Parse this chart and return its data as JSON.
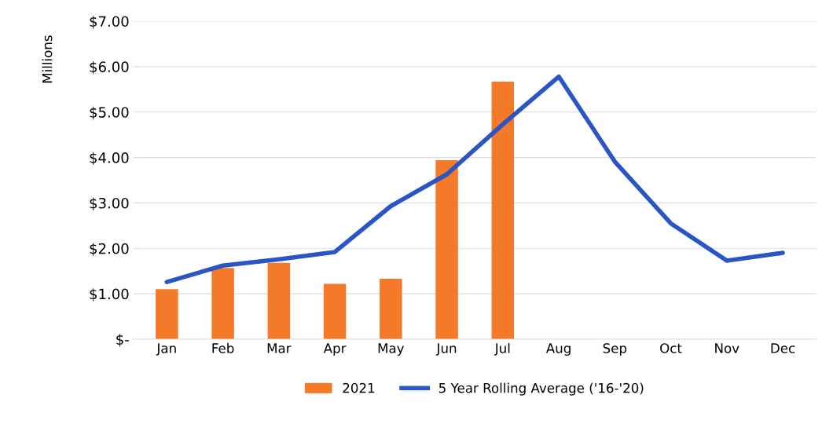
{
  "chart_data": {
    "type": "bar",
    "ylabel": "Millions",
    "categories": [
      "Jan",
      "Feb",
      "Mar",
      "Apr",
      "May",
      "Jun",
      "Jul",
      "Aug",
      "Sep",
      "Oct",
      "Nov",
      "Dec"
    ],
    "series": [
      {
        "name": "2021",
        "color": "#f47a2a",
        "values": [
          1.1,
          1.57,
          1.68,
          1.22,
          1.33,
          3.94,
          5.67,
          null,
          null,
          null,
          null,
          null
        ]
      },
      {
        "name": "5 Year Rolling Average ('16-'20)",
        "type": "line",
        "color": "#2a55c4",
        "values": [
          1.26,
          1.62,
          1.76,
          1.92,
          2.93,
          3.63,
          4.73,
          5.78,
          3.91,
          2.55,
          1.73,
          1.9
        ]
      }
    ],
    "ylim": [
      0,
      7
    ],
    "yticks": [
      {
        "value": 0,
        "label": "$-"
      },
      {
        "value": 1,
        "label": "$1.00"
      },
      {
        "value": 2,
        "label": "$2.00"
      },
      {
        "value": 3,
        "label": "$3.00"
      },
      {
        "value": 4,
        "label": "$4.00"
      },
      {
        "value": 5,
        "label": "$5.00"
      },
      {
        "value": 6,
        "label": "$6.00"
      },
      {
        "value": 7,
        "label": "$7.00"
      }
    ],
    "grid": "y",
    "legend": "bottom",
    "marker": "none",
    "line_style": "solid"
  }
}
